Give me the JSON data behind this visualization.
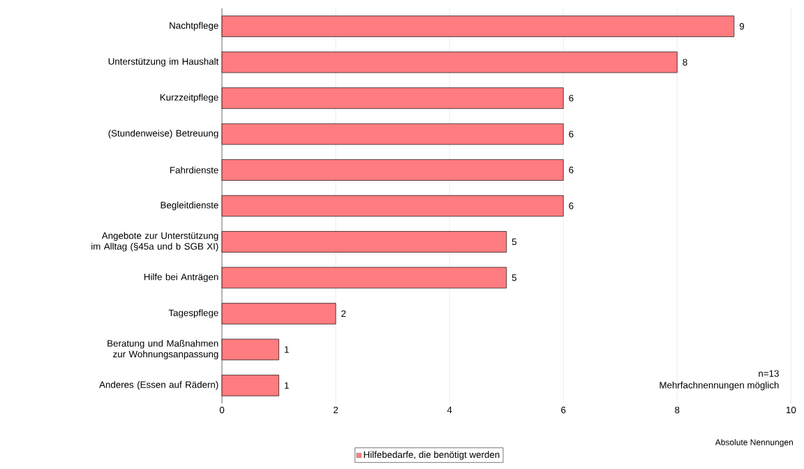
{
  "chart_data": {
    "type": "bar",
    "orientation": "horizontal",
    "categories": [
      "Nachtpflege",
      "Unterstützung im Haushalt",
      "Kurzzeitpflege",
      "(Stundenweise) Betreuung",
      "Fahrdienste",
      "Begleitdienste",
      "Angebote zur Unterstützung im Alltag (§45a und b SGB XI)",
      "Hilfe bei Anträgen",
      "Tagespflege",
      "Beratung und Maßnahmen zur Wohnungsanpassung",
      "Anderes (Essen auf Rädern)"
    ],
    "series": [
      {
        "name": "Hilfebedarfe, die benötigt werden",
        "color": "#ff7c80",
        "values": [
          9,
          8,
          6,
          6,
          6,
          6,
          5,
          5,
          2,
          1,
          1
        ]
      }
    ],
    "xlim": [
      0,
      10
    ],
    "xticks": [
      0,
      2,
      4,
      6,
      8,
      10
    ],
    "xlabel": "Absolute Nennungen",
    "grid": "x",
    "legend": "bottom",
    "data_labels": true,
    "annotations": [
      "n=13",
      "Mehrfachnennungen möglich"
    ]
  }
}
